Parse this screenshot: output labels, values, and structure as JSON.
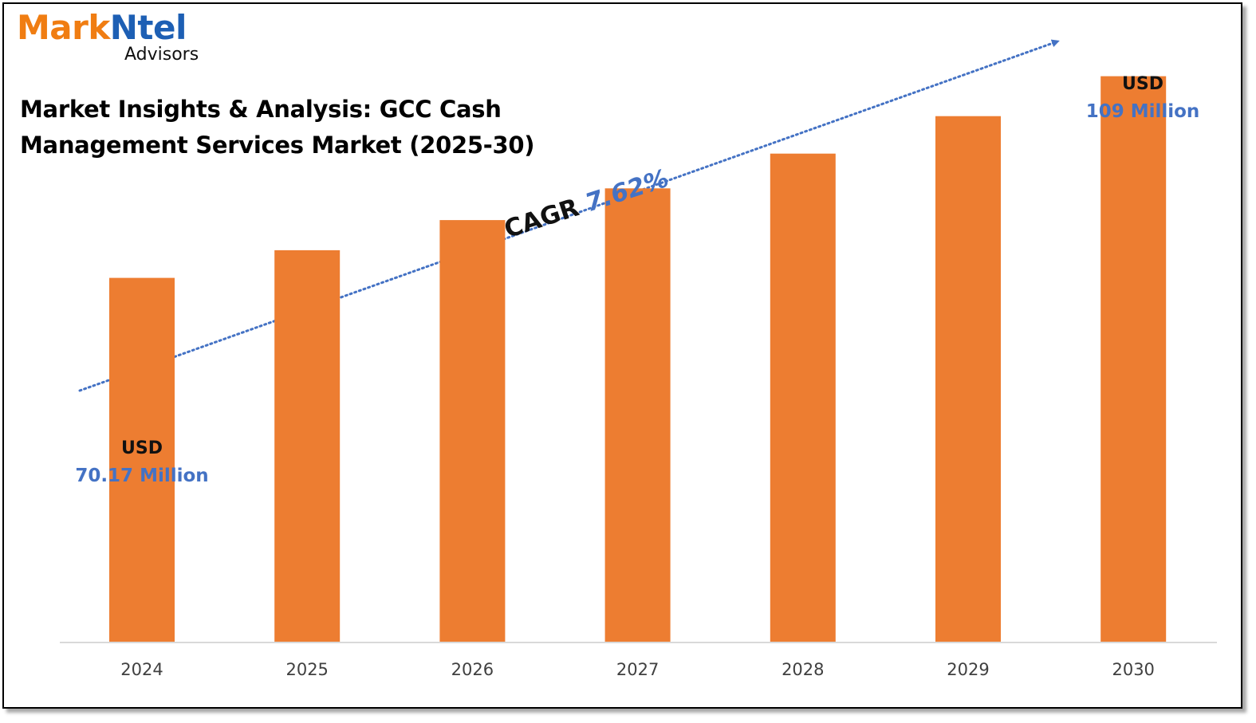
{
  "logo": {
    "word_a": "Mark",
    "word_b": "Ntel",
    "subtitle": "Advisors"
  },
  "colors": {
    "bar": "#ed7d31",
    "accent": "#4472c4",
    "axis": "#d9d9d9",
    "logo_orange": "#f07d12",
    "logo_blue": "#1d5fb4"
  },
  "chart_data": {
    "type": "bar",
    "title": "Market Insights & Analysis: GCC Cash Management Services Market (2025-30)",
    "categories": [
      "2024",
      "2025",
      "2026",
      "2027",
      "2028",
      "2029",
      "2030"
    ],
    "values": [
      70.17,
      75.5,
      81.3,
      87.4,
      94.1,
      101.3,
      109
    ],
    "ylim": [
      0,
      112
    ],
    "grid": false,
    "annotations": {
      "first": {
        "currency": "USD",
        "value": "70.17 Million"
      },
      "last": {
        "currency": "USD",
        "value": "109 Million"
      },
      "cagr_label": "CAGR",
      "cagr_value": "7.62%"
    }
  }
}
